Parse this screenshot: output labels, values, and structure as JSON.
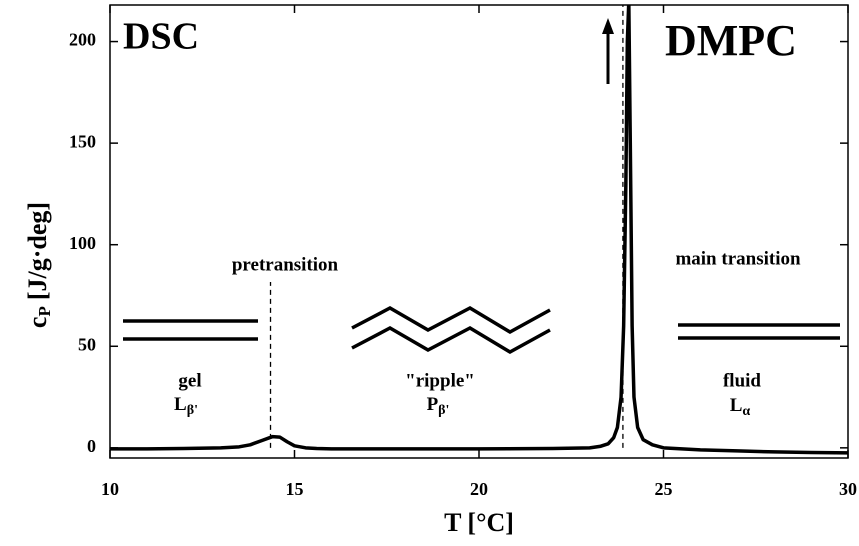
{
  "chart_data": {
    "type": "line",
    "title": "DSC",
    "subtitle": "DMPC",
    "x_label": "T [°C]",
    "y_label": {
      "symbol": "c",
      "subscript": "P",
      "unit": "[J/g·deg]"
    },
    "x": [
      10,
      11,
      12,
      13,
      13.5,
      13.8,
      14.1,
      14.4,
      14.6,
      14.8,
      15.0,
      15.3,
      15.6,
      16,
      18,
      20,
      22,
      23,
      23.3,
      23.5,
      23.65,
      23.75,
      23.85,
      23.92,
      23.98,
      24.02,
      24.06,
      24.1,
      24.15,
      24.2,
      24.3,
      24.45,
      24.7,
      25,
      26,
      27,
      28,
      29,
      30
    ],
    "series": [
      {
        "color": "#000000",
        "values": [
          -0.5,
          -0.5,
          -0.3,
          0,
          0.5,
          1.5,
          3.5,
          5.5,
          5.3,
          3,
          1,
          0,
          -0.3,
          -0.5,
          -0.5,
          -0.5,
          -0.3,
          0,
          0.8,
          2,
          5,
          10,
          25,
          60,
          130,
          200,
          220,
          150,
          60,
          25,
          10,
          4,
          1.5,
          0,
          -1,
          -1.5,
          -2,
          -2.3,
          -2.5
        ]
      }
    ],
    "xlim": [
      10,
      30
    ],
    "ylim": [
      -5,
      218
    ],
    "xticks": [
      10,
      15,
      20,
      25,
      30
    ],
    "yticks": [
      0,
      50,
      100,
      150,
      200
    ],
    "grid": false,
    "vlines": [
      14.35,
      23.9
    ],
    "annotations": [
      {
        "text": "pretransition"
      },
      {
        "text": "main transition"
      },
      {
        "text": "gel",
        "symbol": "L",
        "subscript": "β'"
      },
      {
        "text": "\"ripple\"",
        "symbol": "P",
        "subscript": "β'"
      },
      {
        "text": "fluid",
        "symbol": "L",
        "subscript": "α"
      }
    ]
  }
}
